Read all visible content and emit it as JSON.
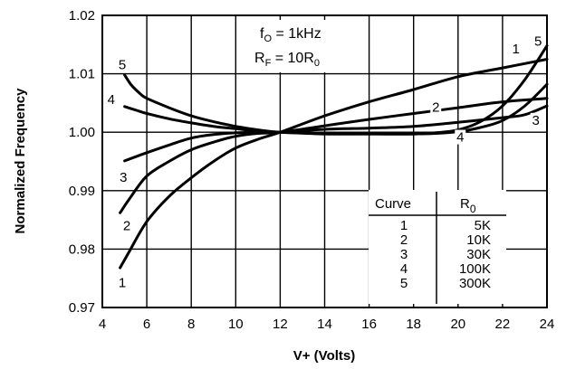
{
  "chart_data": {
    "type": "line",
    "title": "",
    "xlabel": "V+ (Volts)",
    "ylabel": "Normalized Frequency",
    "xlim": [
      4,
      24
    ],
    "ylim": [
      0.97,
      1.02
    ],
    "grid": true,
    "x_ticks": [
      "4",
      "6",
      "8",
      "10",
      "12",
      "14",
      "16",
      "18",
      "20",
      "22",
      "24"
    ],
    "y_ticks": [
      "0.97",
      "0.98",
      "0.99",
      "1.00",
      "1.01",
      "1.02"
    ],
    "annotations": {
      "line1_main": "f",
      "line1_sub": "O",
      "line1_rest": " = 1kHz",
      "line2_main": "R",
      "line2_sub": "F",
      "line2_mid": " = 10R",
      "line2_sub2": "0"
    },
    "legend_table": {
      "header_curve": "Curve",
      "header_r_main": "R",
      "header_r_sub": "0",
      "rows": [
        {
          "curve": "1",
          "r0": "5K"
        },
        {
          "curve": "2",
          "r0": "10K"
        },
        {
          "curve": "3",
          "r0": "30K"
        },
        {
          "curve": "4",
          "r0": "100K"
        },
        {
          "curve": "5",
          "r0": "300K"
        }
      ]
    },
    "series": [
      {
        "name": "1",
        "x": [
          4.8,
          5.2,
          6,
          7,
          8,
          9,
          10,
          11,
          12,
          14,
          16,
          18,
          20,
          22,
          24
        ],
        "y": [
          0.9768,
          0.9795,
          0.9847,
          0.989,
          0.9922,
          0.995,
          0.9973,
          0.9988,
          1.0,
          1.0028,
          1.0052,
          1.0073,
          1.0095,
          1.011,
          1.0125
        ]
      },
      {
        "name": "2",
        "x": [
          4.8,
          5.2,
          6,
          7,
          8,
          9,
          10,
          11,
          12,
          14,
          16,
          18,
          20,
          22,
          24
        ],
        "y": [
          0.9862,
          0.9885,
          0.9925,
          0.995,
          0.997,
          0.9983,
          0.9993,
          0.9998,
          1.0,
          1.0011,
          1.0022,
          1.0032,
          1.0042,
          1.0052,
          1.0058
        ]
      },
      {
        "name": "3",
        "x": [
          5,
          5.5,
          6,
          7,
          8,
          9,
          10,
          11,
          12,
          14,
          16,
          18,
          20,
          22,
          23,
          24
        ],
        "y": [
          0.9951,
          0.9958,
          0.9965,
          0.9978,
          0.999,
          0.9996,
          0.9999,
          1.0,
          1.0,
          1.0005,
          1.0007,
          1.001,
          1.0017,
          1.0025,
          1.003,
          1.0045
        ]
      },
      {
        "name": "4",
        "x": [
          5,
          5.5,
          6,
          7,
          8,
          9,
          10,
          11,
          12,
          14,
          16,
          18,
          19,
          20,
          21,
          22,
          23,
          24
        ],
        "y": [
          1.0044,
          1.0038,
          1.0032,
          1.0023,
          1.0016,
          1.001,
          1.0006,
          1.0002,
          1.0,
          0.9997,
          0.9997,
          0.9997,
          0.9998,
          1.0001,
          1.0008,
          1.002,
          1.0045,
          1.0082
        ]
      },
      {
        "name": "5",
        "x": [
          5,
          5.3,
          5.7,
          6,
          7,
          8,
          9,
          10,
          11,
          12,
          14,
          16,
          18,
          19,
          20,
          21,
          22,
          23,
          24
        ],
        "y": [
          1.0098,
          1.0081,
          1.0066,
          1.0058,
          1.0042,
          1.0028,
          1.0018,
          1.001,
          1.0004,
          1.0,
          0.9998,
          0.9997,
          0.9997,
          0.9999,
          1.0004,
          1.0018,
          1.0045,
          1.009,
          1.0148
        ]
      }
    ],
    "curve_labels": [
      {
        "text": "1",
        "x": 4.9,
        "y": 0.9735
      },
      {
        "text": "2",
        "x": 5.1,
        "y": 0.9832
      },
      {
        "text": "3",
        "x": 4.95,
        "y": 0.9915
      },
      {
        "text": "4",
        "x": 4.4,
        "y": 1.0048
      },
      {
        "text": "5",
        "x": 4.9,
        "y": 1.0108
      },
      {
        "text": "2",
        "x": 19.0,
        "y": 1.0035
      },
      {
        "text": "4",
        "x": 20.1,
        "y": 0.9984
      },
      {
        "text": "3",
        "x": 23.5,
        "y": 1.0013
      },
      {
        "text": "1",
        "x": 22.6,
        "y": 1.0135
      },
      {
        "text": "5",
        "x": 23.6,
        "y": 1.0148
      }
    ]
  }
}
